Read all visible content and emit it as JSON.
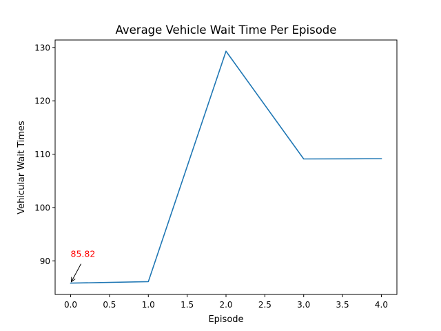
{
  "chart_data": {
    "type": "line",
    "title": "Average Vehicle Wait Time Per Episode",
    "xlabel": "Episode",
    "ylabel": "Vehicular Wait Times",
    "x": [
      0,
      1,
      2,
      3,
      4
    ],
    "series": [
      {
        "values": [
          85.82,
          86.1,
          129.3,
          109.1,
          109.15
        ],
        "color": "#1f77b4"
      }
    ],
    "xlim": [
      -0.2,
      4.2
    ],
    "ylim": [
      83.7,
      131.4
    ],
    "xticks": [
      0,
      0.5,
      1,
      1.5,
      2,
      2.5,
      3,
      3.5,
      4
    ],
    "xtick_labels": [
      "0.0",
      "0.5",
      "1.0",
      "1.5",
      "2.0",
      "2.5",
      "3.0",
      "3.5",
      "4.0"
    ],
    "yticks": [
      90,
      100,
      110,
      120,
      130
    ],
    "ytick_labels": [
      "90",
      "100",
      "110",
      "120",
      "130"
    ],
    "grid": false,
    "annotation": {
      "text": "85.82",
      "x": 0,
      "y": 85.82,
      "color": "#ff0000"
    }
  }
}
